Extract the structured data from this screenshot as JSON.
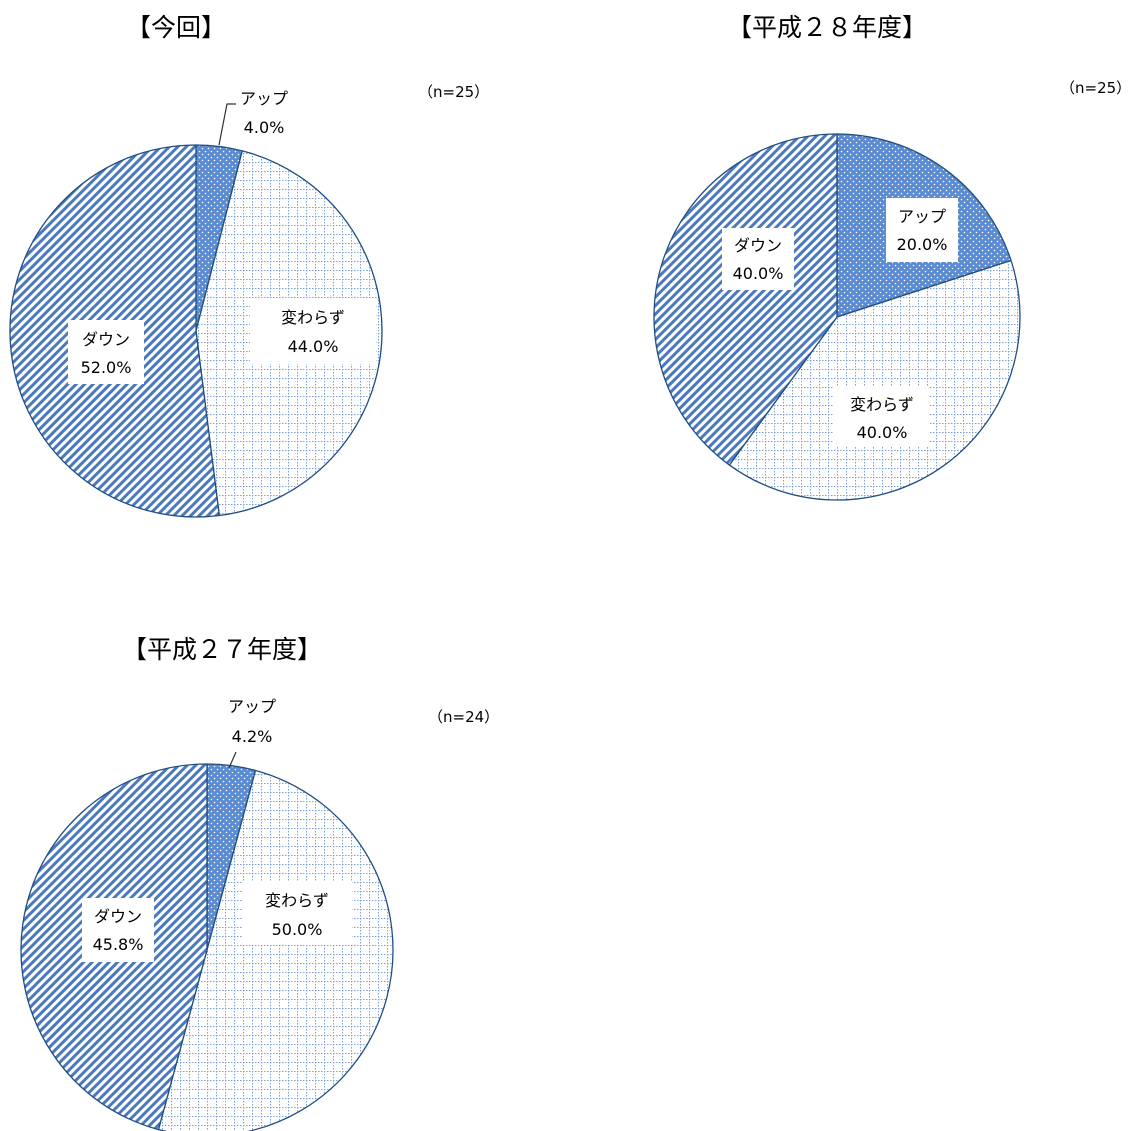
{
  "colors": {
    "up_fill": "#5b8bd0",
    "up_dots": "#ffffff",
    "down_fill": "#ffffff",
    "down_lines": "#4a79bf",
    "same_fill": "#ffffff",
    "same_lines": "#7aa0d8",
    "border": "#1f4e82"
  },
  "chart_data": [
    {
      "type": "pie",
      "title": "【今回】",
      "note": "（n=25）",
      "slices": [
        {
          "key": "up",
          "label": "アップ",
          "value": 4.0,
          "value_label": "4.0%"
        },
        {
          "key": "same",
          "label": "変わらず",
          "value": 44.0,
          "value_label": "44.0%"
        },
        {
          "key": "down",
          "label": "ダウン",
          "value": 52.0,
          "value_label": "52.0%"
        }
      ]
    },
    {
      "type": "pie",
      "title": "【平成２８年度】",
      "note": "（n=25）",
      "slices": [
        {
          "key": "up",
          "label": "アップ",
          "value": 20.0,
          "value_label": "20.0%"
        },
        {
          "key": "same",
          "label": "変わらず",
          "value": 40.0,
          "value_label": "40.0%"
        },
        {
          "key": "down",
          "label": "ダウン",
          "value": 40.0,
          "value_label": "40.0%"
        }
      ]
    },
    {
      "type": "pie",
      "title": "【平成２７年度】",
      "note": "（n=24）",
      "slices": [
        {
          "key": "up",
          "label": "アップ",
          "value": 4.2,
          "value_label": "4.2%"
        },
        {
          "key": "same",
          "label": "変わらず",
          "value": 50.0,
          "value_label": "50.0%"
        },
        {
          "key": "down",
          "label": "ダウン",
          "value": 45.8,
          "value_label": "45.8%"
        }
      ]
    }
  ]
}
